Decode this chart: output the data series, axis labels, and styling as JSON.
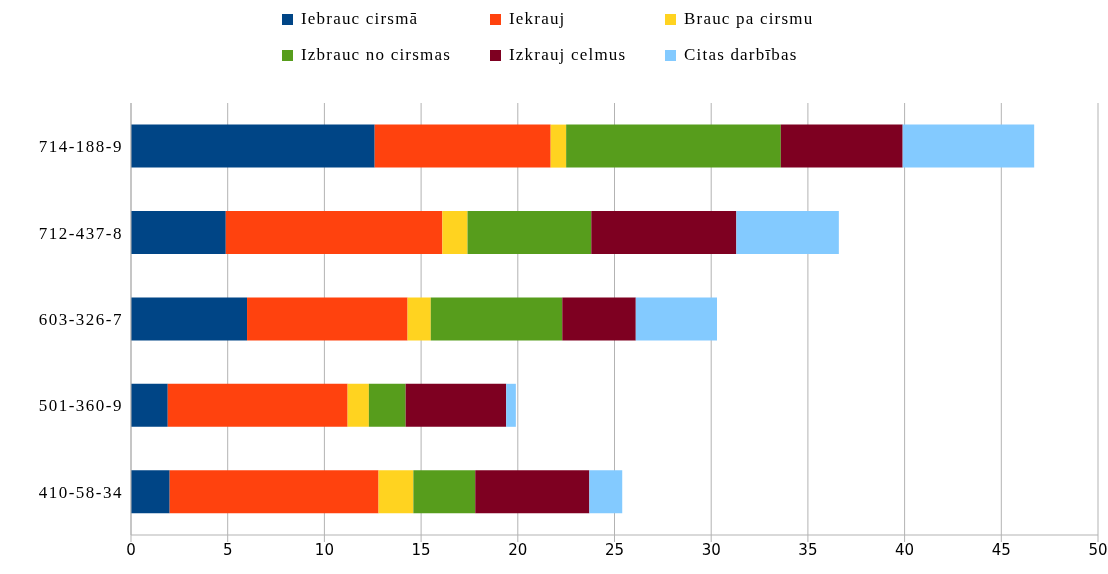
{
  "chart_data": {
    "type": "bar",
    "orientation": "horizontal",
    "stacked": true,
    "categories": [
      "714-188-9",
      "712-437-8",
      "603-326-7",
      "501-360-9",
      "410-58-34"
    ],
    "series": [
      {
        "name": "Iebrauc cirsmā",
        "color": "#004586",
        "values": [
          12.6,
          4.9,
          6.0,
          1.9,
          2.0
        ]
      },
      {
        "name": "Iekrauj",
        "color": "#ff420e",
        "values": [
          9.1,
          11.2,
          8.3,
          9.3,
          10.8
        ]
      },
      {
        "name": "Brauc pa cirsmu",
        "color": "#ffd320",
        "values": [
          0.8,
          1.3,
          1.2,
          1.1,
          1.8
        ]
      },
      {
        "name": "Izbrauc no cirsmas",
        "color": "#579d1c",
        "values": [
          11.1,
          6.4,
          6.8,
          1.9,
          3.2
        ]
      },
      {
        "name": "Izkrauj celmus",
        "color": "#7e0021",
        "values": [
          6.3,
          7.5,
          3.8,
          5.2,
          5.9
        ]
      },
      {
        "name": "Citas darbības",
        "color": "#83caff",
        "values": [
          6.8,
          5.3,
          4.2,
          0.5,
          1.7
        ]
      }
    ],
    "xlim": [
      0,
      50
    ],
    "xticks": [
      0,
      5,
      10,
      15,
      20,
      25,
      30,
      35,
      40,
      45,
      50
    ],
    "grid": "x",
    "legend": "top"
  }
}
